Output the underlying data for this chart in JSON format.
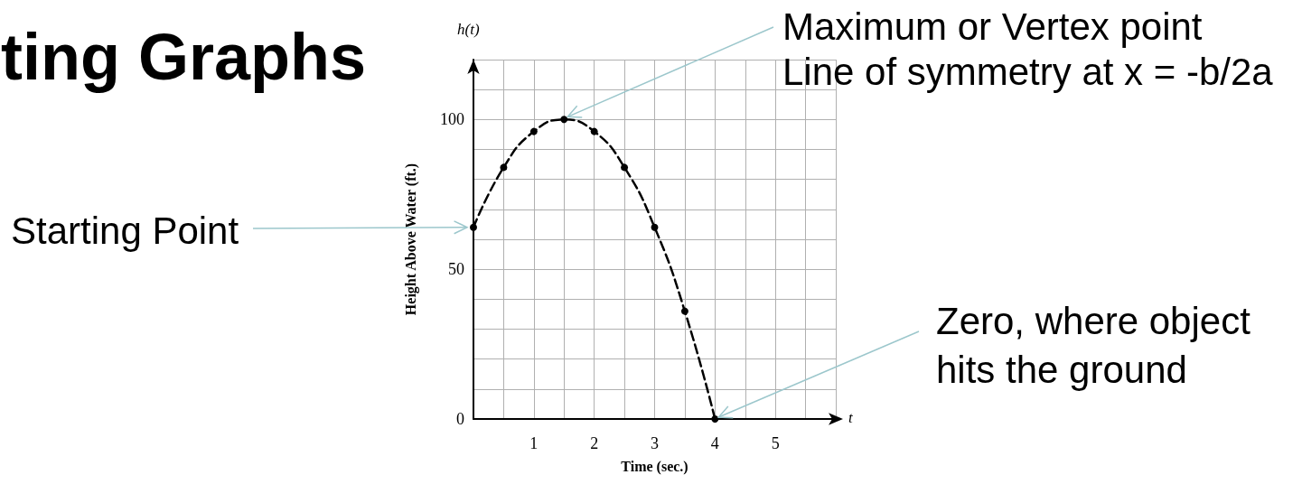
{
  "chart_data": {
    "type": "line",
    "title": "ting Graphs",
    "xlabel": "Time (sec.)",
    "ylabel": "Height Above Water (ft.)",
    "x": [
      0,
      0.5,
      1,
      1.5,
      2,
      2.5,
      3,
      3.5,
      4
    ],
    "series": [
      {
        "color": "#000000",
        "values": [
          64,
          84,
          96,
          100,
          96,
          84,
          64,
          36,
          0
        ]
      }
    ],
    "xlim": [
      0,
      6
    ],
    "ylim": [
      0,
      120
    ],
    "xticks": [
      {
        "value": 0,
        "label": null
      },
      {
        "value": 0.5,
        "label": null
      },
      1,
      {
        "value": 1.5,
        "label": null
      },
      2,
      {
        "value": 2.5,
        "label": null
      },
      3,
      {
        "value": 3.5,
        "label": null
      },
      4,
      {
        "value": 4.5,
        "label": null
      },
      5,
      {
        "value": 5.5,
        "label": null
      },
      {
        "value": 6,
        "label": null
      }
    ],
    "yticks": [
      0,
      {
        "value": 10,
        "label": null
      },
      {
        "value": 20,
        "label": null
      },
      {
        "value": 30,
        "label": null
      },
      {
        "value": 40,
        "label": null
      },
      50,
      {
        "value": 60,
        "label": null
      },
      {
        "value": 70,
        "label": null
      },
      {
        "value": 80,
        "label": null
      },
      {
        "value": 90,
        "label": null
      },
      100,
      {
        "value": 110,
        "label": null
      },
      {
        "value": 120,
        "label": null
      }
    ],
    "grid": true,
    "marker": "circle",
    "line_style": "dashed",
    "annotations": [
      "h(t)",
      "t",
      {
        "text": "Starting Point",
        "x": 0,
        "y": 64
      },
      {
        "text": "Maximum or Vertex point\nLine of symmetry at x = -b/2a",
        "x": 1.5,
        "y": 100
      },
      {
        "text": "Zero, where object\nhits the ground",
        "x": 4,
        "y": 0
      }
    ]
  }
}
